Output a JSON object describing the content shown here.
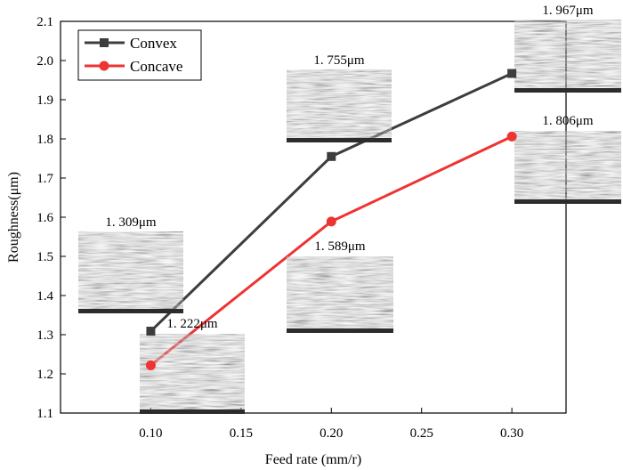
{
  "chart_data": {
    "type": "line",
    "title": "",
    "xlabel": "Feed rate (mm/r)",
    "ylabel": "Roughness(μm)",
    "xlim": [
      0.05,
      0.33
    ],
    "ylim": [
      1.1,
      2.1
    ],
    "xticks": [
      0.1,
      0.15,
      0.2,
      0.25,
      0.3
    ],
    "xtick_labels": [
      "0.10",
      "0.15",
      "0.20",
      "0.25",
      "0.30"
    ],
    "yticks": [
      1.1,
      1.2,
      1.3,
      1.4,
      1.5,
      1.6,
      1.7,
      1.8,
      1.9,
      2.0,
      2.1
    ],
    "ytick_labels": [
      "1.1",
      "1.2",
      "1.3",
      "1.4",
      "1.5",
      "1.6",
      "1.7",
      "1.8",
      "1.9",
      "2.0",
      "2.1"
    ],
    "grid": false,
    "legend_position": "top-left",
    "x": [
      0.1,
      0.2,
      0.3
    ],
    "series": [
      {
        "name": "Convex",
        "color": "#3d3d3d",
        "marker": "square",
        "values": [
          1.309,
          1.755,
          1.967
        ]
      },
      {
        "name": "Concave",
        "color": "#ee3333",
        "marker": "circle",
        "values": [
          1.222,
          1.589,
          1.806
        ]
      }
    ],
    "annotations": [
      {
        "text": "1. 309μm",
        "series": 0,
        "point": 0,
        "image": "SEM micrograph"
      },
      {
        "text": "1. 755μm",
        "series": 0,
        "point": 1,
        "image": "SEM micrograph"
      },
      {
        "text": "1. 967μm",
        "series": 0,
        "point": 2,
        "image": "SEM micrograph"
      },
      {
        "text": "1. 222μm",
        "series": 1,
        "point": 0,
        "image": "SEM micrograph"
      },
      {
        "text": "1. 589μm",
        "series": 1,
        "point": 1,
        "image": "SEM micrograph"
      },
      {
        "text": "1. 806μm",
        "series": 1,
        "point": 2,
        "image": "SEM micrograph"
      }
    ]
  }
}
